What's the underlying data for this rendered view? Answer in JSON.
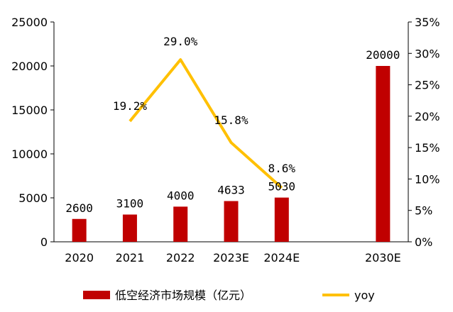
{
  "chart_data": {
    "type": "bar",
    "categories": [
      "2020",
      "2021",
      "2022",
      "2023E",
      "2024E",
      "",
      "2030E"
    ],
    "series": [
      {
        "name": "低空经济市场规模（亿元）",
        "type": "bar",
        "axis": "left",
        "color": "#C00000",
        "values": [
          2600,
          3100,
          4000,
          4633,
          5030,
          null,
          20000
        ],
        "labels": [
          "2600",
          "3100",
          "4000",
          "4633",
          "5030",
          "",
          "20000"
        ]
      },
      {
        "name": "yoy",
        "type": "line",
        "axis": "right",
        "color": "#FFC000",
        "values": [
          null,
          19.2,
          29.0,
          15.8,
          8.6,
          null,
          null
        ],
        "labels": [
          "",
          "19.2%",
          "29.0%",
          "15.8%",
          "8.6%",
          "",
          ""
        ]
      }
    ],
    "y_left": {
      "min": 0,
      "max": 25000,
      "ticks": [
        0,
        5000,
        10000,
        15000,
        20000,
        25000
      ],
      "tick_labels": [
        "0",
        "5000",
        "10000",
        "15000",
        "20000",
        "25000"
      ]
    },
    "y_right": {
      "min": 0,
      "max": 35,
      "ticks": [
        0,
        5,
        10,
        15,
        20,
        25,
        30,
        35
      ],
      "tick_labels": [
        "0%",
        "5%",
        "10%",
        "15%",
        "20%",
        "25%",
        "30%",
        "35%"
      ]
    },
    "grid": false,
    "legend_position": "bottom"
  }
}
